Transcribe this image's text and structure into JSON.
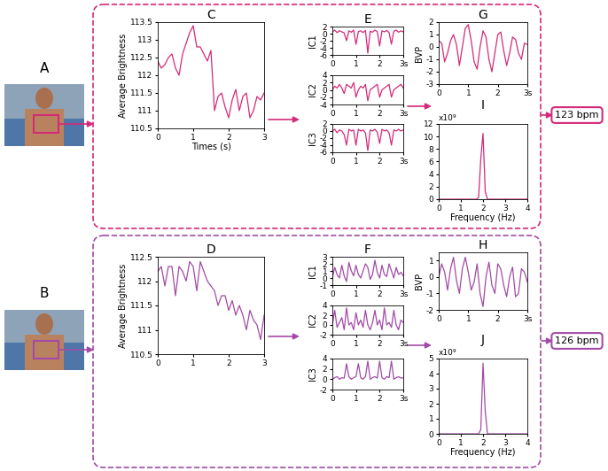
{
  "photos": [
    {
      "label": "A"
    },
    {
      "label": "B"
    }
  ],
  "outputs": [
    {
      "text": "123 bpm",
      "color": "#d42a78"
    },
    {
      "text": "126 bpm",
      "color": "#a34aa6"
    }
  ],
  "chart_data": [
    {
      "type": "line",
      "title": "C",
      "xlabel": "Times (s)",
      "ylabel": "Average Brightness",
      "color": "#d42a78",
      "x": [
        0,
        0.1,
        0.2,
        0.3,
        0.4,
        0.5,
        0.6,
        0.7,
        0.8,
        0.9,
        1,
        1.1,
        1.2,
        1.3,
        1.4,
        1.5,
        1.6,
        1.7,
        1.8,
        1.9,
        2,
        2.1,
        2.2,
        2.3,
        2.4,
        2.5,
        2.6,
        2.7,
        2.8,
        2.9,
        3
      ],
      "values": [
        112.4,
        112.2,
        112.3,
        112.5,
        112.6,
        112.2,
        112,
        112.6,
        112.9,
        113.2,
        113.4,
        112.8,
        112.8,
        112.6,
        112.4,
        112.7,
        111,
        111.4,
        111.5,
        111.1,
        110.8,
        111.3,
        111.6,
        111,
        111.4,
        111.5,
        110.8,
        111,
        111.4,
        111.3,
        111.5
      ],
      "xlim": [
        0,
        3
      ],
      "xticks": [
        0,
        1,
        2,
        3
      ],
      "ylim": [
        110.5,
        113.5
      ],
      "yticks": [
        110.5,
        111,
        111.5,
        112,
        112.5,
        113,
        113.5
      ]
    },
    {
      "type": "line",
      "title": "E",
      "ylabel": "IC1",
      "color": "#d42a78",
      "x": [
        0,
        0.1,
        0.2,
        0.3,
        0.4,
        0.5,
        0.6,
        0.7,
        0.8,
        0.9,
        1,
        1.1,
        1.2,
        1.3,
        1.4,
        1.5,
        1.6,
        1.7,
        1.8,
        1.9,
        2,
        2.1,
        2.2,
        2.3,
        2.4,
        2.5,
        2.6,
        2.7,
        2.8,
        2.9,
        3
      ],
      "values": [
        0.5,
        1,
        0.3,
        0.8,
        0.5,
        0.2,
        -2,
        0.8,
        0.4,
        1,
        -3,
        0.6,
        0.8,
        0.3,
        0.9,
        -5.5,
        0.7,
        0.4,
        1,
        0.6,
        -3.5,
        0.8,
        0.5,
        0.9,
        0.3,
        -3,
        0.7,
        1,
        0.4,
        0.8,
        0.5
      ],
      "xlim": [
        0,
        3
      ],
      "xticks": [
        0,
        1,
        2,
        {
          "value": 3,
          "label": "3s"
        }
      ],
      "ylim": [
        -6,
        2
      ],
      "yticks": [
        -6,
        -4,
        -2,
        0,
        2
      ]
    },
    {
      "type": "line",
      "ylabel": "IC2",
      "color": "#d42a78",
      "x": [
        0,
        0.1,
        0.2,
        0.3,
        0.4,
        0.5,
        0.6,
        0.7,
        0.8,
        0.9,
        1,
        1.1,
        1.2,
        1.3,
        1.4,
        1.5,
        1.6,
        1.7,
        1.8,
        1.9,
        2,
        2.1,
        2.2,
        2.3,
        2.4,
        2.5,
        2.6,
        2.7,
        2.8,
        2.9,
        3
      ],
      "values": [
        0,
        1,
        0.5,
        1.5,
        0.5,
        -1,
        1.5,
        1,
        0.5,
        2,
        -2,
        0,
        1,
        0.5,
        1.5,
        -3,
        0,
        0.5,
        1,
        1.5,
        -2,
        0,
        0.5,
        1,
        1.5,
        -2,
        0,
        0.5,
        1,
        1.5,
        0.5
      ],
      "xlim": [
        0,
        3
      ],
      "xticks": [
        0,
        1,
        2,
        {
          "value": 3,
          "label": "3s"
        }
      ],
      "ylim": [
        -4,
        4
      ],
      "yticks": [
        -4,
        -2,
        0,
        2,
        4
      ]
    },
    {
      "type": "line",
      "ylabel": "IC3",
      "color": "#d42a78",
      "x": [
        0,
        0.1,
        0.2,
        0.3,
        0.4,
        0.5,
        0.6,
        0.7,
        0.8,
        0.9,
        1,
        1.1,
        1.2,
        1.3,
        1.4,
        1.5,
        1.6,
        1.7,
        1.8,
        1.9,
        2,
        2.1,
        2.2,
        2.3,
        2.4,
        2.5,
        2.6,
        2.7,
        2.8,
        2.9,
        3
      ],
      "values": [
        0,
        0.5,
        -0.5,
        0.3,
        0,
        -1,
        -4,
        0.5,
        0,
        0.3,
        -4,
        0.5,
        0,
        0.3,
        -0.5,
        -5.5,
        0.3,
        0,
        0.5,
        -0.3,
        -3.5,
        0.5,
        0,
        0.3,
        -0.5,
        -4,
        0.3,
        0,
        0.5,
        0,
        0.3
      ],
      "xlim": [
        0,
        3
      ],
      "xticks": [
        0,
        1,
        2,
        {
          "value": 3,
          "label": "3s"
        }
      ],
      "ylim": [
        -6,
        2
      ],
      "yticks": [
        -6,
        -4,
        -2,
        0,
        2
      ]
    },
    {
      "type": "line",
      "title": "G",
      "ylabel": "BVP",
      "color": "#d42a78",
      "x": [
        0,
        0.1,
        0.2,
        0.3,
        0.4,
        0.5,
        0.6,
        0.7,
        0.8,
        0.9,
        1,
        1.1,
        1.2,
        1.3,
        1.4,
        1.5,
        1.6,
        1.7,
        1.8,
        1.9,
        2,
        2.1,
        2.2,
        2.3,
        2.4,
        2.5,
        2.6,
        2.7,
        2.8,
        2.9,
        3
      ],
      "values": [
        0.5,
        0.3,
        -1.2,
        -0.5,
        0.5,
        1,
        0.2,
        -1.5,
        0,
        1.5,
        1.8,
        0.5,
        -1.2,
        -1.8,
        0,
        1.3,
        0.8,
        -1,
        -2,
        -0.5,
        1,
        1.2,
        -0.3,
        -1.5,
        -0.5,
        0.8,
        0.6,
        -0.5,
        -1,
        0.3,
        0.2
      ],
      "xlim": [
        0,
        3
      ],
      "xticks": [
        0,
        1,
        2,
        {
          "value": 3,
          "label": "3s"
        }
      ],
      "ylim": [
        -3,
        2
      ],
      "yticks": [
        -3,
        -2,
        -1,
        0,
        1,
        2
      ]
    },
    {
      "type": "line",
      "title": "I",
      "xlabel": "Frequency (Hz)",
      "annotations": [
        "x10⁹"
      ],
      "color": "#d42a78",
      "x": [
        0,
        0.1,
        0.2,
        0.3,
        0.4,
        0.5,
        0.6,
        0.7,
        0.8,
        0.9,
        1,
        1.1,
        1.2,
        1.3,
        1.4,
        1.5,
        1.6,
        1.7,
        1.8,
        1.9,
        2,
        2.1,
        2.2,
        2.3,
        2.4,
        2.5,
        2.6,
        2.7,
        2.8,
        2.9,
        3,
        3.1,
        3.2,
        3.3,
        3.4,
        3.5,
        3.6,
        3.7,
        3.8,
        3.9,
        4
      ],
      "values": [
        0,
        0,
        0,
        0,
        0,
        0,
        0,
        0,
        0,
        0,
        0,
        0,
        0,
        0,
        0,
        0,
        0,
        0,
        0.3,
        6.5,
        10.5,
        1.2,
        0,
        0,
        0,
        0,
        0,
        0,
        0,
        0,
        0,
        0,
        0,
        0,
        0,
        0,
        0,
        0,
        0,
        0,
        0
      ],
      "xlim": [
        0,
        4
      ],
      "xticks": [
        0,
        1,
        2,
        3,
        4
      ],
      "ylim": [
        0,
        12
      ],
      "yticks": [
        0,
        2,
        4,
        6,
        8,
        10,
        12
      ]
    },
    {
      "type": "line",
      "title": "D",
      "ylabel": "Average Brightness",
      "color": "#a34aa6",
      "x": [
        0,
        0.1,
        0.2,
        0.3,
        0.4,
        0.5,
        0.6,
        0.7,
        0.8,
        0.9,
        1,
        1.1,
        1.2,
        1.3,
        1.4,
        1.5,
        1.6,
        1.7,
        1.8,
        1.9,
        2,
        2.1,
        2.2,
        2.3,
        2.4,
        2.5,
        2.6,
        2.7,
        2.8,
        2.9,
        3
      ],
      "values": [
        112.2,
        112.3,
        111.9,
        112.3,
        112.3,
        111.7,
        112.3,
        112.2,
        112,
        112.4,
        112.3,
        111.8,
        112.4,
        112.2,
        112,
        111.9,
        111.8,
        111.5,
        111.7,
        111.7,
        111.4,
        111.6,
        111.3,
        111.5,
        111.3,
        111,
        111.4,
        111.2,
        111.1,
        110.8,
        111.3
      ],
      "xlim": [
        0,
        3
      ],
      "xticks": [
        0,
        1,
        2,
        3
      ],
      "ylim": [
        110.5,
        112.5
      ],
      "yticks": [
        110.5,
        111,
        111.5,
        112,
        112.5
      ]
    },
    {
      "type": "line",
      "title": "F",
      "ylabel": "IC1",
      "color": "#a34aa6",
      "x": [
        0,
        0.1,
        0.2,
        0.3,
        0.4,
        0.5,
        0.6,
        0.7,
        0.8,
        0.9,
        1,
        1.1,
        1.2,
        1.3,
        1.4,
        1.5,
        1.6,
        1.7,
        1.8,
        1.9,
        2,
        2.1,
        2.2,
        2.3,
        2.4,
        2.5,
        2.6,
        2.7,
        2.8,
        2.9,
        3
      ],
      "values": [
        0,
        1.5,
        0.5,
        0,
        1.8,
        0.3,
        -0.5,
        2.2,
        1,
        0.3,
        1.8,
        0.5,
        0,
        1,
        2,
        1.5,
        -0.2,
        0.5,
        2.5,
        0.8,
        0,
        1.8,
        0.5,
        0.2,
        2,
        1,
        0,
        1.5,
        0.5,
        0.8,
        0.3
      ],
      "xlim": [
        0,
        3
      ],
      "xticks": [
        0,
        1,
        2,
        {
          "value": 3,
          "label": "3s"
        }
      ],
      "ylim": [
        -1,
        3
      ],
      "yticks": [
        -1,
        0,
        1,
        2,
        3
      ]
    },
    {
      "type": "line",
      "ylabel": "IC2",
      "color": "#a34aa6",
      "x": [
        0,
        0.1,
        0.2,
        0.3,
        0.4,
        0.5,
        0.6,
        0.7,
        0.8,
        0.9,
        1,
        1.1,
        1.2,
        1.3,
        1.4,
        1.5,
        1.6,
        1.7,
        1.8,
        1.9,
        2,
        2.1,
        2.2,
        2.3,
        2.4,
        2.5,
        2.6,
        2.7,
        2.8,
        2.9,
        3
      ],
      "values": [
        0,
        3,
        -0.5,
        0.5,
        1.5,
        -1,
        3.5,
        0,
        0.5,
        -1,
        2.5,
        0,
        1,
        -0.5,
        3,
        0,
        -1,
        0.5,
        3,
        0,
        1,
        -1,
        3.5,
        0,
        0.5,
        -0.5,
        3,
        0,
        -1,
        1,
        0.5
      ],
      "xlim": [
        0,
        3
      ],
      "xticks": [
        0,
        1,
        2,
        {
          "value": 3,
          "label": "3s"
        }
      ],
      "ylim": [
        -2,
        4
      ],
      "yticks": [
        -2,
        0,
        2,
        4
      ]
    },
    {
      "type": "line",
      "ylabel": "IC3",
      "color": "#a34aa6",
      "x": [
        0,
        0.1,
        0.2,
        0.3,
        0.4,
        0.5,
        0.6,
        0.7,
        0.8,
        0.9,
        1,
        1.1,
        1.2,
        1.3,
        1.4,
        1.5,
        1.6,
        1.7,
        1.8,
        1.9,
        2,
        2.1,
        2.2,
        2.3,
        2.4,
        2.5,
        2.6,
        2.7,
        2.8,
        2.9,
        3
      ],
      "values": [
        0,
        0.3,
        0.5,
        0,
        0.3,
        0.2,
        3,
        0.5,
        0,
        0.3,
        0.5,
        3,
        0.3,
        0,
        0.5,
        3.5,
        0,
        0.3,
        0.5,
        0.2,
        3.5,
        0.3,
        0,
        0.5,
        0.3,
        3.5,
        0,
        0.3,
        0.5,
        0.2,
        0.3
      ],
      "xlim": [
        0,
        3
      ],
      "xticks": [
        0,
        1,
        2,
        {
          "value": 3,
          "label": "3s"
        }
      ],
      "ylim": [
        -2,
        4
      ],
      "yticks": [
        -2,
        0,
        2,
        4
      ]
    },
    {
      "type": "line",
      "title": "H",
      "ylabel": "BVP",
      "color": "#a34aa6",
      "x": [
        0,
        0.1,
        0.2,
        0.3,
        0.4,
        0.5,
        0.6,
        0.7,
        0.8,
        0.9,
        1,
        1.1,
        1.2,
        1.3,
        1.4,
        1.5,
        1.6,
        1.7,
        1.8,
        1.9,
        2,
        2.1,
        2.2,
        2.3,
        2.4,
        2.5,
        2.6,
        2.7,
        2.8,
        2.9,
        3
      ],
      "values": [
        0,
        0.8,
        0.3,
        -0.8,
        0.5,
        1.2,
        -0.2,
        -1,
        0.5,
        1.2,
        0.3,
        -0.8,
        -0.3,
        0.8,
        -1,
        -1.8,
        0,
        0.9,
        -0.5,
        -1,
        0.8,
        0.5,
        -0.5,
        -1.2,
        0,
        0.6,
        -1.2,
        -1,
        0.5,
        0.3,
        -0.3
      ],
      "xlim": [
        0,
        3
      ],
      "xticks": [
        0,
        1,
        2,
        {
          "value": 3,
          "label": "3s"
        }
      ],
      "ylim": [
        -2,
        1.5
      ],
      "yticks": [
        -2,
        -1,
        0,
        1
      ]
    },
    {
      "type": "line",
      "title": "J",
      "xlabel": "Frequency (Hz)",
      "annotations": [
        "x10⁹"
      ],
      "color": "#a34aa6",
      "x": [
        0,
        0.1,
        0.2,
        0.3,
        0.4,
        0.5,
        0.6,
        0.7,
        0.8,
        0.9,
        1,
        1.1,
        1.2,
        1.3,
        1.4,
        1.5,
        1.6,
        1.7,
        1.8,
        1.9,
        2,
        2.1,
        2.2,
        2.3,
        2.4,
        2.5,
        2.6,
        2.7,
        2.8,
        2.9,
        3,
        3.1,
        3.2,
        3.3,
        3.4,
        3.5,
        3.6,
        3.7,
        3.8,
        3.9,
        4
      ],
      "values": [
        0,
        0,
        0,
        0,
        0,
        0,
        0,
        0,
        0,
        0,
        0,
        0,
        0,
        0,
        0,
        0,
        0,
        0,
        0,
        0.3,
        4.7,
        1.5,
        0,
        0,
        0,
        0,
        0,
        0,
        0,
        0,
        0,
        0,
        0,
        0,
        0,
        0,
        0,
        0,
        0,
        0,
        0
      ],
      "xlim": [
        0,
        4
      ],
      "xticks": [
        0,
        1,
        2,
        3,
        4
      ],
      "ylim": [
        0,
        5
      ],
      "yticks": [
        0,
        1,
        2,
        3,
        4,
        5
      ]
    }
  ]
}
